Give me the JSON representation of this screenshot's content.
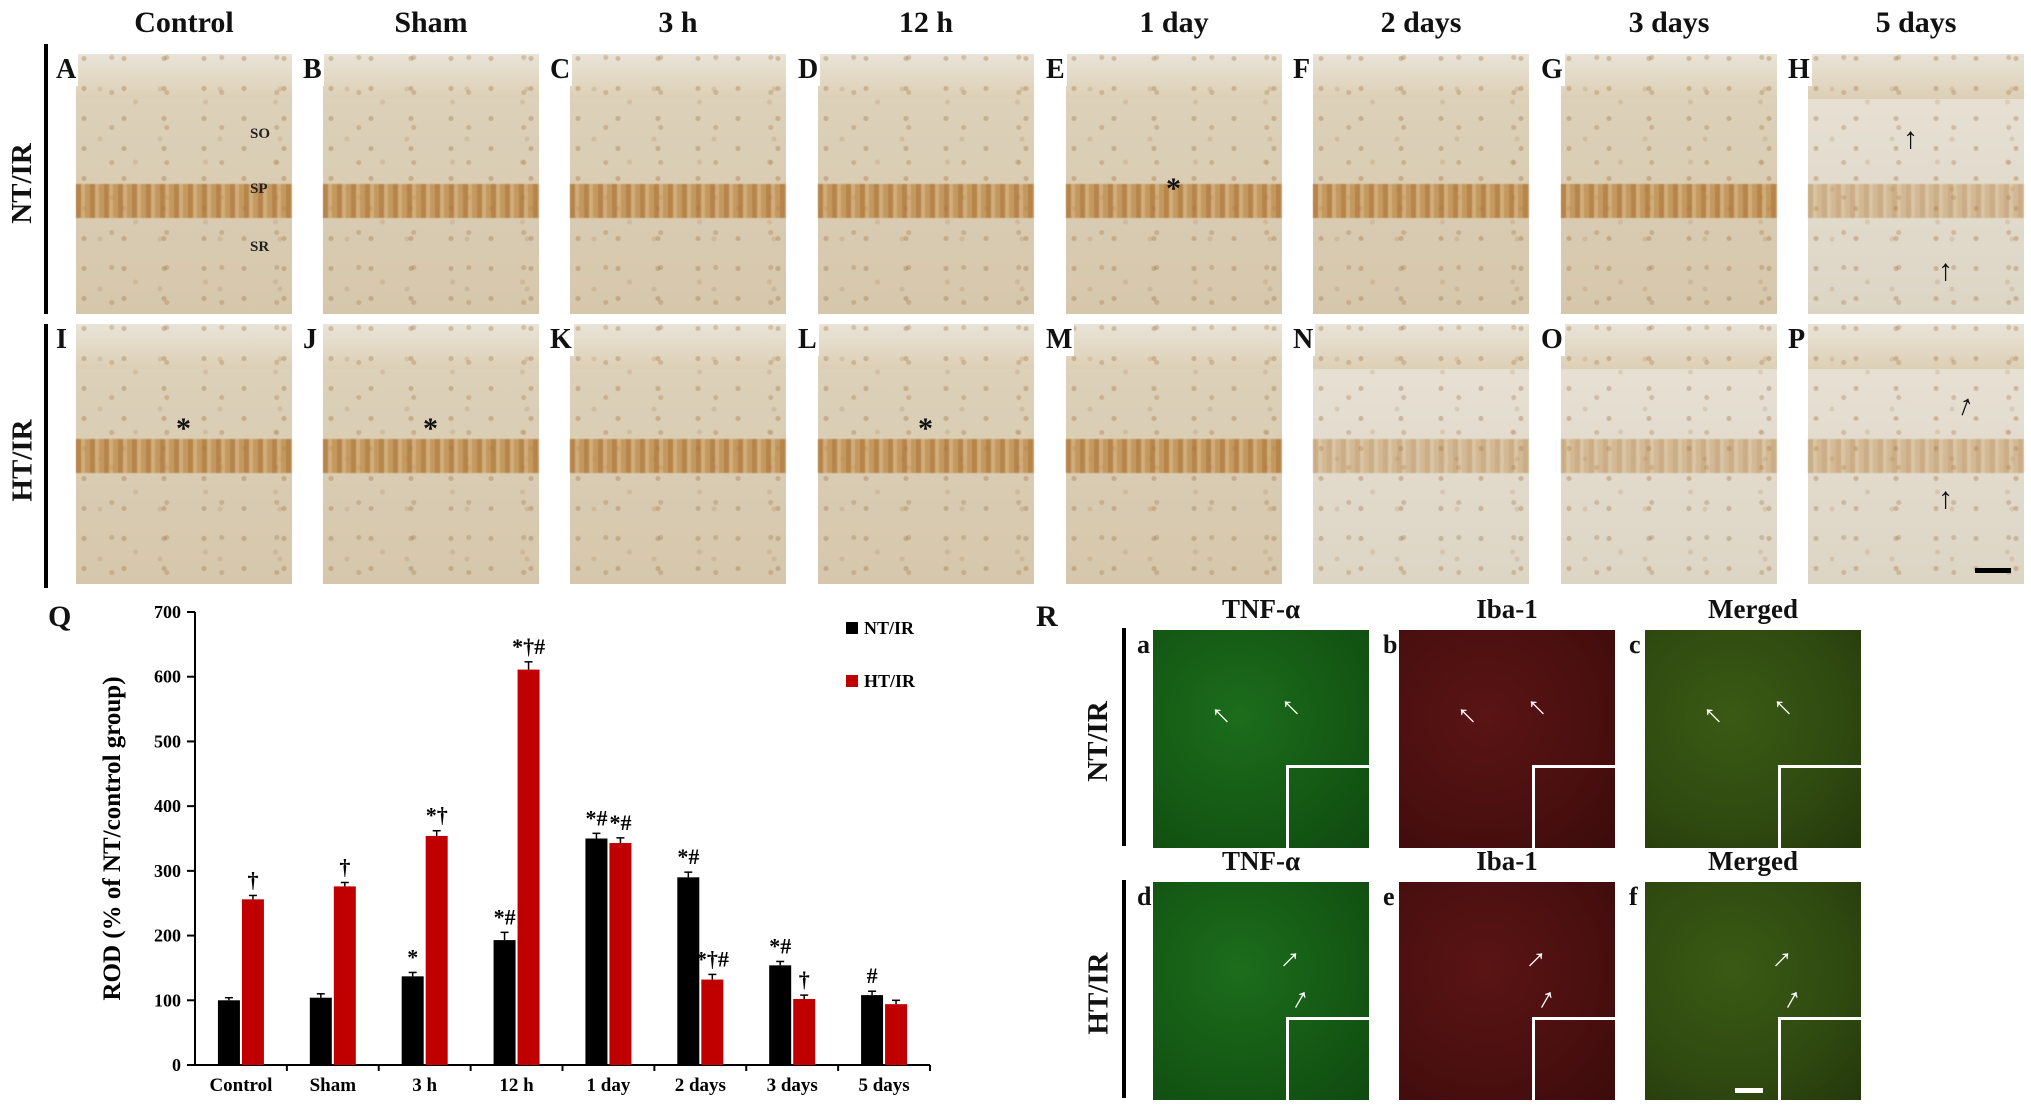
{
  "column_headers": [
    "Control",
    "Sham",
    "3 h",
    "12 h",
    "1 day",
    "2 days",
    "3 days",
    "5 days"
  ],
  "row_labels": {
    "nt": "NT/IR",
    "ht": "HT/IR"
  },
  "panel_letters_top": [
    "A",
    "B",
    "C",
    "D",
    "E",
    "F",
    "G",
    "H"
  ],
  "panel_letters_bottom": [
    "I",
    "J",
    "K",
    "L",
    "M",
    "N",
    "O",
    "P"
  ],
  "layer_labels": [
    "SO",
    "SP",
    "SR"
  ],
  "asterisk": "*",
  "arrow_glyph": "↑",
  "panel_q_label": "Q",
  "panel_r_label": "R",
  "fluor": {
    "headers": [
      "TNF-α",
      "Iba-1",
      "Merged"
    ],
    "letters_top": [
      "a",
      "b",
      "c"
    ],
    "letters_bottom": [
      "d",
      "e",
      "f"
    ],
    "colors": {
      "green": "#145814",
      "red": "#4a0f0f",
      "merged": "#2f4a10"
    }
  },
  "chart_data": {
    "type": "bar",
    "ylabel": "ROD (% of NT/control group)",
    "xlabel": "",
    "ylim": [
      0,
      700
    ],
    "yticks": [
      0,
      100,
      200,
      300,
      400,
      500,
      600,
      700
    ],
    "categories": [
      "Control",
      "Sham",
      "3 h",
      "12 h",
      "1 day",
      "2 days",
      "3 days",
      "5 days"
    ],
    "series": [
      {
        "name": "NT/IR",
        "color": "#000000",
        "values": [
          100,
          104,
          137,
          193,
          350,
          290,
          154,
          108
        ],
        "errors": [
          4,
          6,
          6,
          12,
          8,
          8,
          6,
          6
        ],
        "annotations": [
          "",
          "",
          "*",
          "*#",
          "*#",
          "*#",
          "*#",
          "#"
        ]
      },
      {
        "name": "HT/IR",
        "color": "#c00000",
        "values": [
          256,
          276,
          354,
          611,
          343,
          132,
          102,
          94
        ],
        "errors": [
          6,
          6,
          8,
          12,
          8,
          8,
          6,
          6
        ],
        "annotations": [
          "†",
          "†",
          "*†",
          "*†#",
          "*#",
          "*†#",
          "†",
          ""
        ]
      }
    ],
    "legend_position": "top-right"
  }
}
